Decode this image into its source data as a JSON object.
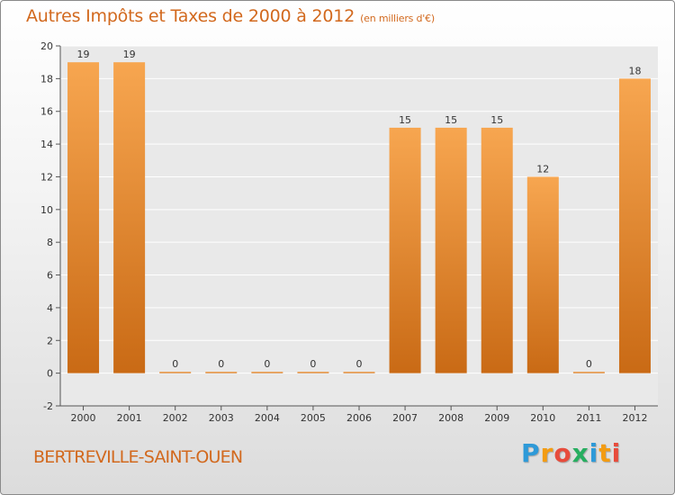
{
  "title": "Autres Impôts et Taxes de 2000 à 2012",
  "unit": "(en milliers d'€)",
  "commune": "BERTREVILLE-SAINT-OUEN",
  "brand": {
    "letters": [
      "P",
      "r",
      "o",
      "x",
      "i",
      "t",
      "i"
    ],
    "colors": [
      "#2e9ad8",
      "#f39c12",
      "#e74c3c",
      "#27ae60",
      "#2e9ad8",
      "#f39c12",
      "#e74c3c"
    ]
  },
  "colors": {
    "bar_light": "#f7a650",
    "bar_dark": "#c96a15",
    "title": "#d2691e",
    "axis": "#555555",
    "grid": "#ffffff"
  },
  "chart_data": {
    "type": "bar",
    "categories": [
      "2000",
      "2001",
      "2002",
      "2003",
      "2004",
      "2005",
      "2006",
      "2007",
      "2008",
      "2009",
      "2010",
      "2011",
      "2012"
    ],
    "values": [
      19,
      19,
      0,
      0,
      0,
      0,
      0,
      15,
      15,
      15,
      12,
      0,
      18
    ],
    "ylim": [
      -2,
      20
    ],
    "yticks": [
      -2,
      0,
      2,
      4,
      6,
      8,
      10,
      12,
      14,
      16,
      18,
      20
    ],
    "grid": true,
    "data_labels": true
  }
}
